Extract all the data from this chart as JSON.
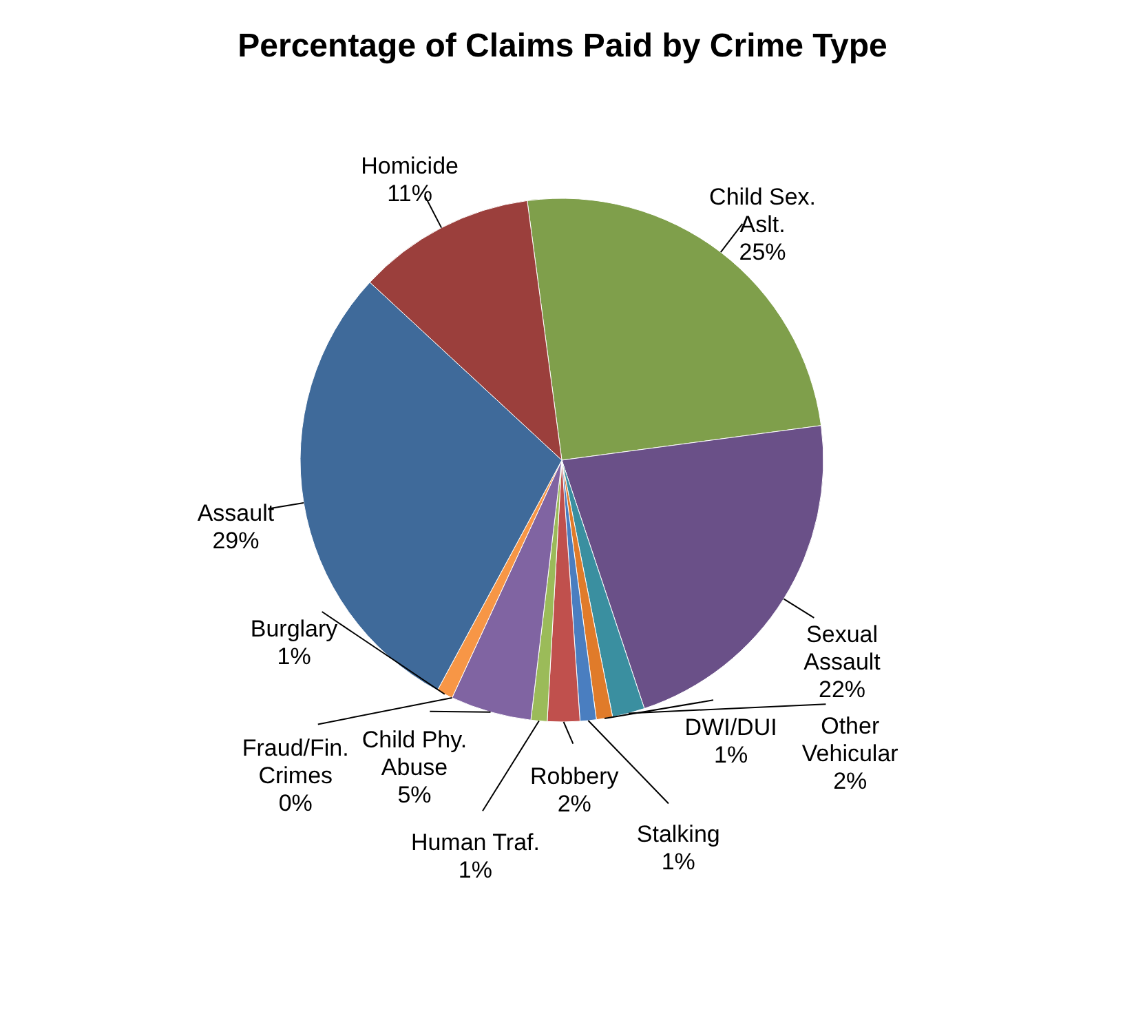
{
  "chart_data": {
    "type": "pie",
    "title": "Percentage of Claims Paid by Crime Type",
    "categories": [
      "Child Sex. Aslt.",
      "Sexual Assault",
      "Other Vehicular",
      "DWI/DUI",
      "Stalking",
      "Robbery",
      "Human Traf.",
      "Child Phy. Abuse",
      "Fraud/Fin. Crimes",
      "Burglary",
      "Assault",
      "Homicide"
    ],
    "values": [
      25,
      22,
      2,
      1,
      1,
      2,
      1,
      5,
      0,
      1,
      29,
      11
    ],
    "value_labels": [
      "25%",
      "22%",
      "2%",
      "1%",
      "1%",
      "2%",
      "1%",
      "5%",
      "0%",
      "1%",
      "29%",
      "11%"
    ],
    "colors": [
      "#7f9f4b",
      "#6a5088",
      "#3a8fa0",
      "#e07b2a",
      "#4a7ec0",
      "#c0504d",
      "#9bbb59",
      "#8064a2",
      "#4bacc6",
      "#f79646",
      "#3f6a9a",
      "#9b3f3c"
    ],
    "legend": false
  }
}
